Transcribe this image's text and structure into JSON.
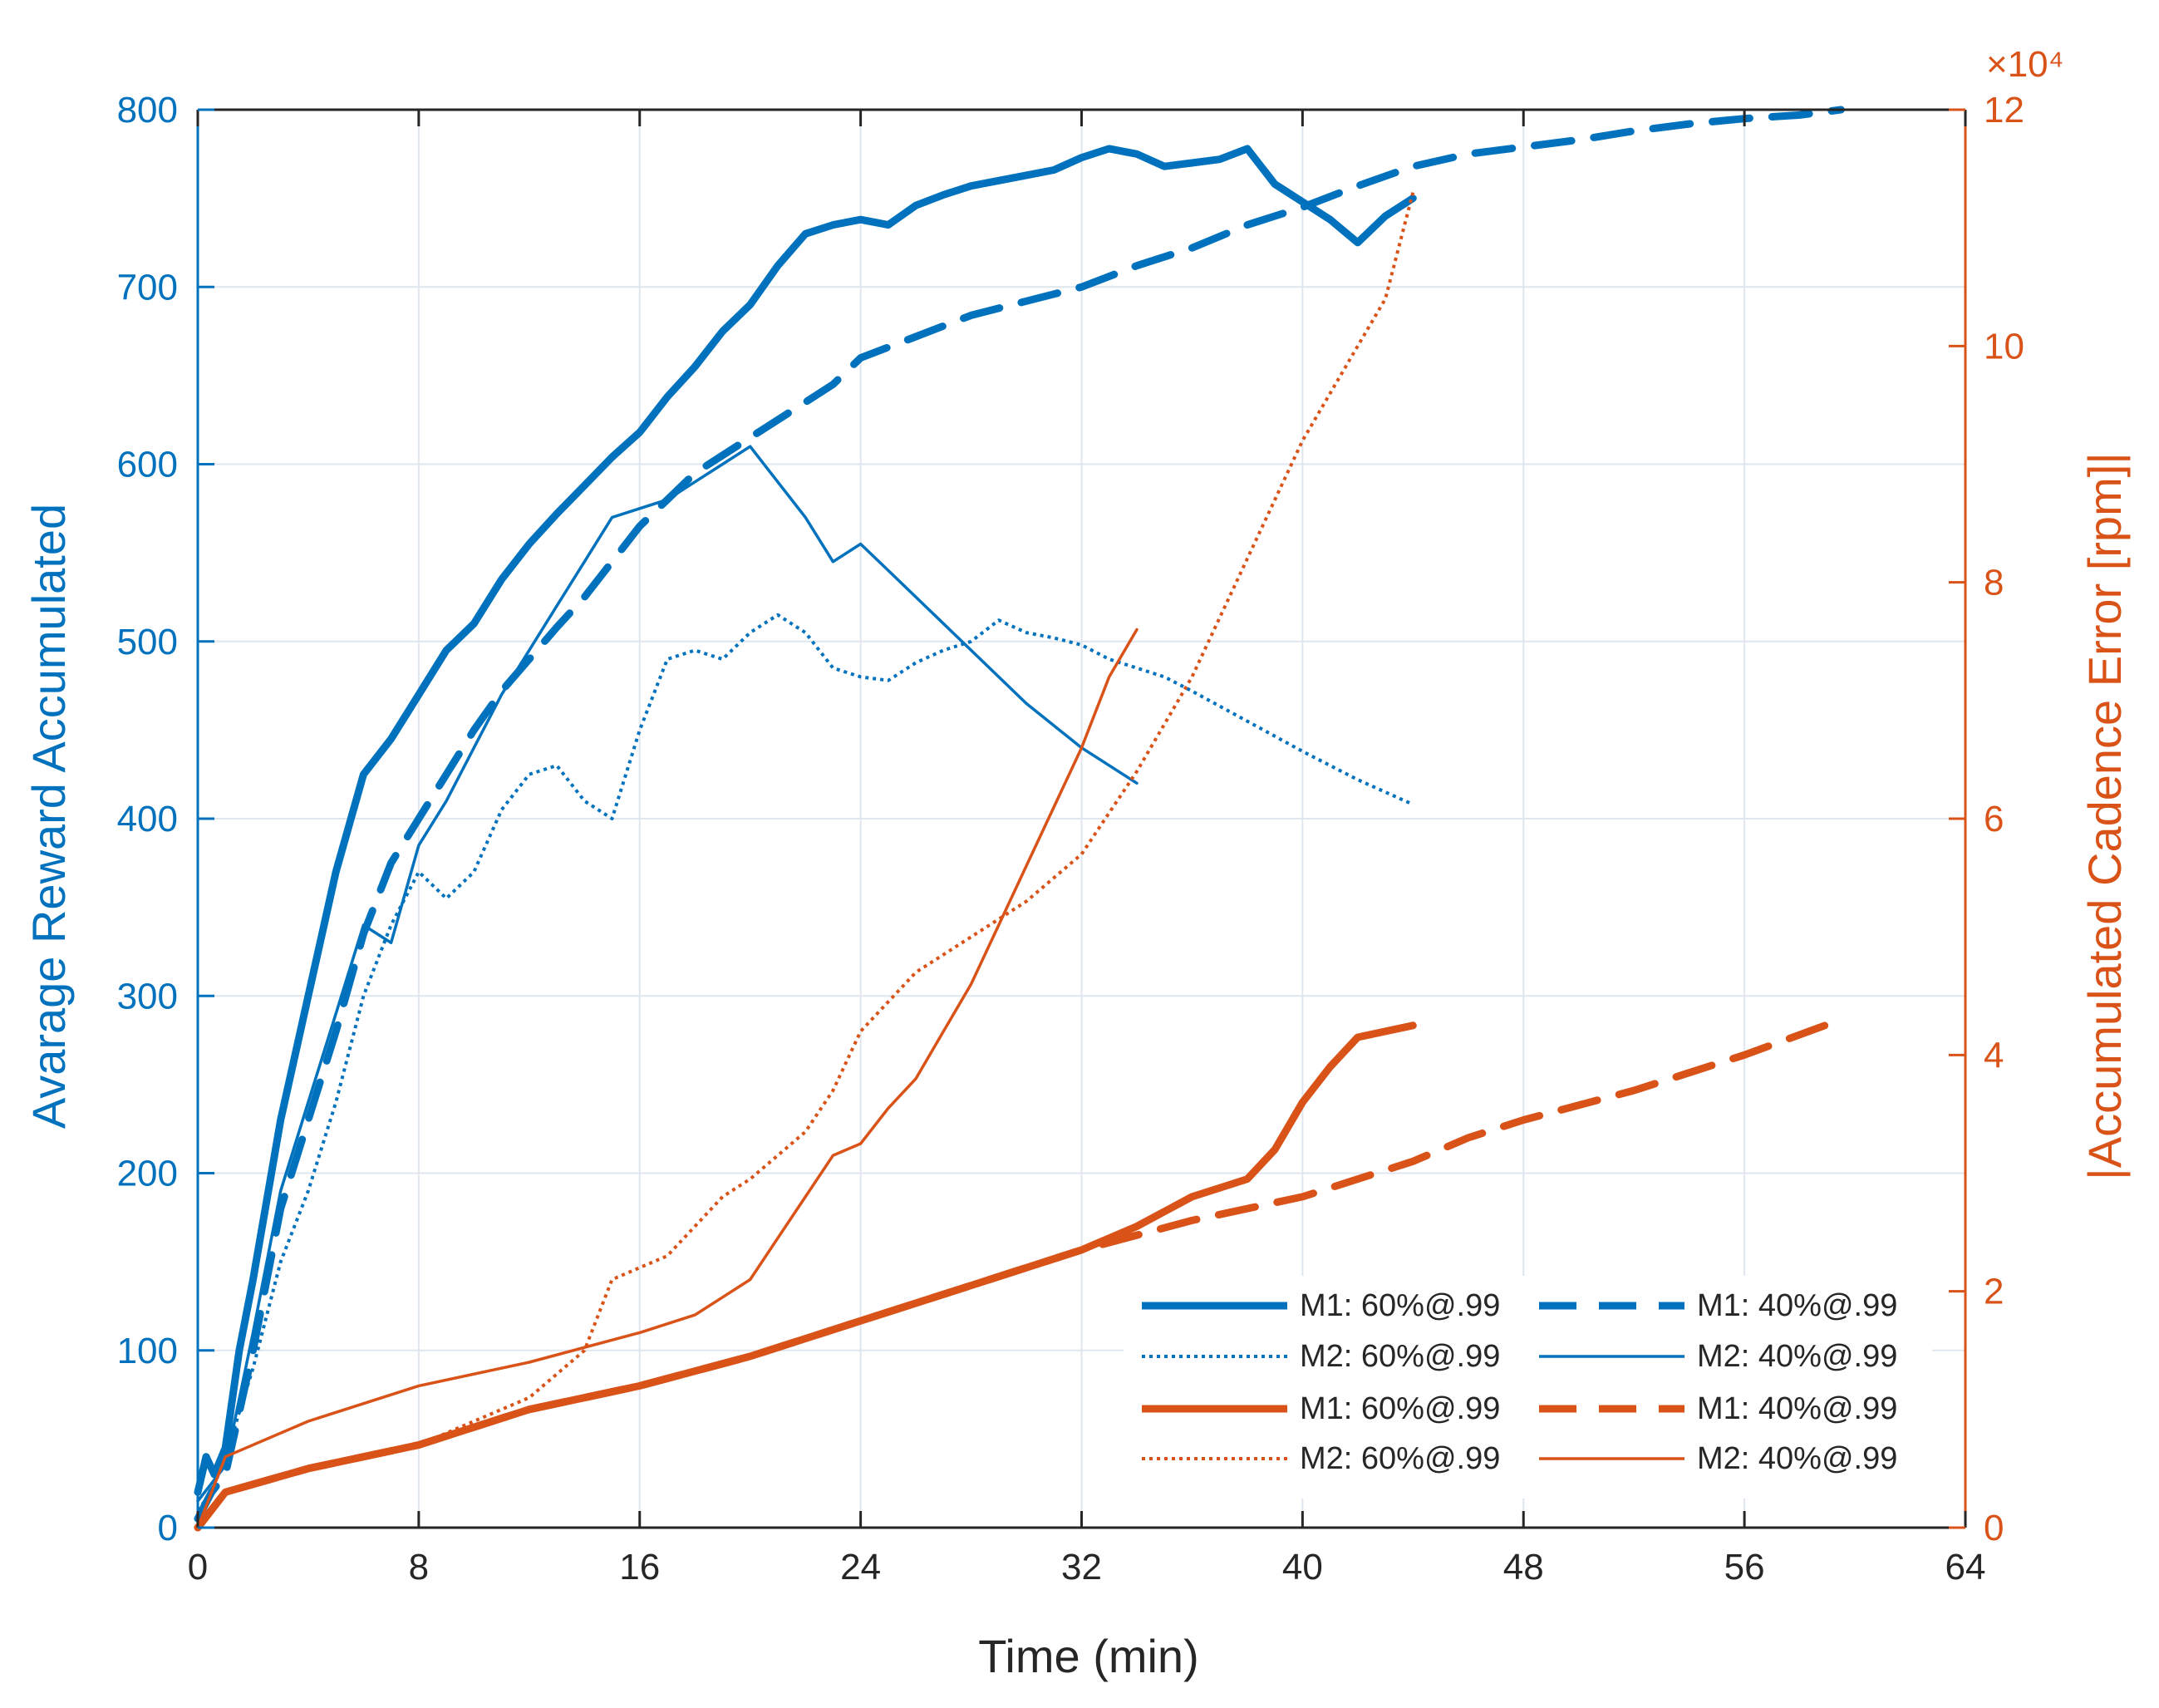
{
  "chart_data": {
    "type": "line",
    "xlabel": "Time (min)",
    "ylabel_left": "Avarage Reward Accumulated",
    "ylabel_right": "|Accumulated Cadence Error [rpm]|",
    "right_axis_multiplier": "×10⁴",
    "xlim": [
      0,
      64
    ],
    "ylim_left": [
      0,
      800
    ],
    "ylim_right": [
      0,
      12
    ],
    "xticks": [
      0,
      8,
      16,
      24,
      32,
      40,
      48,
      56,
      64
    ],
    "yticks_left": [
      0,
      100,
      200,
      300,
      400,
      500,
      600,
      700,
      800
    ],
    "yticks_right": [
      0,
      2,
      4,
      6,
      8,
      10,
      12
    ],
    "grid": true,
    "legend_position": "bottom-right",
    "colors": {
      "blue": "#0072BD",
      "orange": "#D95319",
      "axis": "#262626",
      "grid": "#DFE6EE"
    },
    "series": [
      {
        "name": "M1: 60%@.99",
        "axis": "left",
        "color": "blue",
        "style": "solid",
        "width": 9,
        "x": [
          0,
          0.3,
          0.6,
          1,
          1.5,
          2,
          3,
          4,
          5,
          6,
          7,
          8,
          9,
          10,
          11,
          12,
          13,
          14,
          15,
          16,
          17,
          18,
          19,
          20,
          21,
          22,
          23,
          24,
          25,
          26,
          27,
          28,
          29,
          30,
          31,
          32,
          33,
          34,
          35,
          36,
          37,
          38,
          39,
          40,
          41,
          42,
          43,
          44
        ],
        "values": [
          20,
          40,
          30,
          45,
          100,
          140,
          230,
          300,
          370,
          425,
          445,
          470,
          495,
          510,
          535,
          555,
          572,
          588,
          604,
          618,
          638,
          655,
          675,
          690,
          712,
          730,
          735,
          738,
          735,
          746,
          752,
          757,
          760,
          763,
          766,
          773,
          778,
          775,
          768,
          770,
          772,
          778,
          758,
          748,
          738,
          725,
          740,
          750
        ]
      },
      {
        "name": "M1: 40%@.99",
        "axis": "left",
        "color": "blue",
        "style": "dashed",
        "width": 9,
        "x": [
          0,
          0.5,
          1,
          2,
          3,
          4,
          5,
          6,
          7,
          8,
          9,
          10,
          11,
          12,
          13,
          14,
          15,
          16,
          17,
          18,
          19,
          20,
          21,
          22,
          23,
          24,
          26,
          28,
          30,
          32,
          34,
          36,
          38,
          40,
          42,
          44,
          46,
          48,
          50,
          52,
          54,
          56,
          58,
          59.5
        ],
        "values": [
          5,
          20,
          30,
          100,
          180,
          230,
          280,
          335,
          375,
          400,
          425,
          450,
          472,
          490,
          508,
          525,
          545,
          565,
          580,
          595,
          605,
          615,
          625,
          635,
          645,
          660,
          672,
          684,
          692,
          700,
          712,
          722,
          735,
          745,
          757,
          768,
          775,
          779,
          783,
          788,
          792,
          795,
          797,
          800
        ]
      },
      {
        "name": "M2: 60%@.99",
        "axis": "left",
        "color": "blue",
        "style": "dotted",
        "width": 4,
        "x": [
          0,
          0.5,
          1,
          2,
          3,
          4,
          5,
          6,
          7,
          8,
          9,
          10,
          11,
          12,
          13,
          14,
          15,
          16,
          17,
          18,
          19,
          20,
          21,
          22,
          23,
          24,
          25,
          26,
          27,
          28,
          29,
          30,
          31,
          32,
          33,
          34,
          35,
          36,
          38,
          40,
          42,
          44
        ],
        "values": [
          10,
          20,
          40,
          90,
          150,
          190,
          240,
          300,
          340,
          370,
          355,
          370,
          405,
          425,
          430,
          410,
          400,
          450,
          490,
          495,
          490,
          505,
          515,
          505,
          485,
          480,
          478,
          488,
          495,
          500,
          512,
          505,
          502,
          498,
          490,
          485,
          480,
          472,
          455,
          438,
          422,
          408
        ]
      },
      {
        "name": "M2: 40%@.99",
        "axis": "left",
        "color": "blue",
        "style": "solid",
        "width": 3.5,
        "x": [
          0,
          0.5,
          1,
          2,
          3,
          4,
          5,
          6,
          7,
          8,
          9,
          10,
          11,
          12,
          13,
          14,
          15,
          16,
          17,
          18,
          19,
          20,
          21,
          22,
          23,
          24,
          25,
          26,
          28,
          30,
          32,
          34
        ],
        "values": [
          15,
          25,
          35,
          110,
          190,
          240,
          290,
          340,
          330,
          385,
          410,
          440,
          470,
          495,
          520,
          545,
          570,
          575,
          580,
          590,
          600,
          610,
          590,
          570,
          545,
          555,
          540,
          525,
          495,
          465,
          440,
          420
        ]
      },
      {
        "name": "M1: 60%@.99",
        "axis": "right",
        "color": "orange",
        "style": "solid",
        "width": 9,
        "x": [
          0,
          1,
          4,
          8,
          12,
          16,
          20,
          24,
          28,
          32,
          34,
          36,
          38,
          39,
          40,
          41,
          42,
          43,
          44
        ],
        "values": [
          0,
          0.3,
          0.5,
          0.7,
          1.0,
          1.2,
          1.45,
          1.75,
          2.05,
          2.35,
          2.55,
          2.8,
          2.95,
          3.2,
          3.6,
          3.9,
          4.15,
          4.2,
          4.25
        ]
      },
      {
        "name": "M1: 40%@.99",
        "axis": "right",
        "color": "orange",
        "style": "dashed",
        "width": 9,
        "x": [
          0,
          1,
          4,
          8,
          12,
          16,
          20,
          24,
          28,
          32,
          36,
          40,
          44,
          46,
          48,
          52,
          56,
          59.5
        ],
        "values": [
          0,
          0.3,
          0.5,
          0.7,
          1.0,
          1.2,
          1.45,
          1.75,
          2.05,
          2.35,
          2.6,
          2.8,
          3.1,
          3.3,
          3.45,
          3.7,
          4.0,
          4.3
        ]
      },
      {
        "name": "M2: 60%@.99",
        "axis": "right",
        "color": "orange",
        "style": "dotted",
        "width": 4,
        "x": [
          0,
          1,
          4,
          8,
          10,
          12,
          14,
          15,
          16,
          17,
          18,
          19,
          20,
          21,
          22,
          23,
          24,
          26,
          28,
          30,
          32,
          34,
          36,
          38,
          40,
          41,
          42,
          43,
          44
        ],
        "values": [
          0,
          0.3,
          0.5,
          0.7,
          0.9,
          1.1,
          1.5,
          2.1,
          2.2,
          2.3,
          2.55,
          2.8,
          2.95,
          3.15,
          3.35,
          3.7,
          4.2,
          4.7,
          5.0,
          5.3,
          5.7,
          6.4,
          7.2,
          8.2,
          9.2,
          9.6,
          10.0,
          10.4,
          11.3
        ]
      },
      {
        "name": "M2: 40%@.99",
        "axis": "right",
        "color": "orange",
        "style": "solid",
        "width": 3.5,
        "x": [
          0,
          1,
          4,
          8,
          12,
          16,
          18,
          19,
          20,
          21,
          22,
          23,
          24,
          25,
          26,
          27,
          28,
          29,
          30,
          31,
          32,
          33,
          34
        ],
        "values": [
          0,
          0.6,
          0.9,
          1.2,
          1.4,
          1.65,
          1.8,
          1.95,
          2.1,
          2.45,
          2.8,
          3.15,
          3.25,
          3.55,
          3.8,
          4.2,
          4.6,
          5.1,
          5.6,
          6.1,
          6.6,
          7.2,
          7.6
        ]
      }
    ]
  }
}
